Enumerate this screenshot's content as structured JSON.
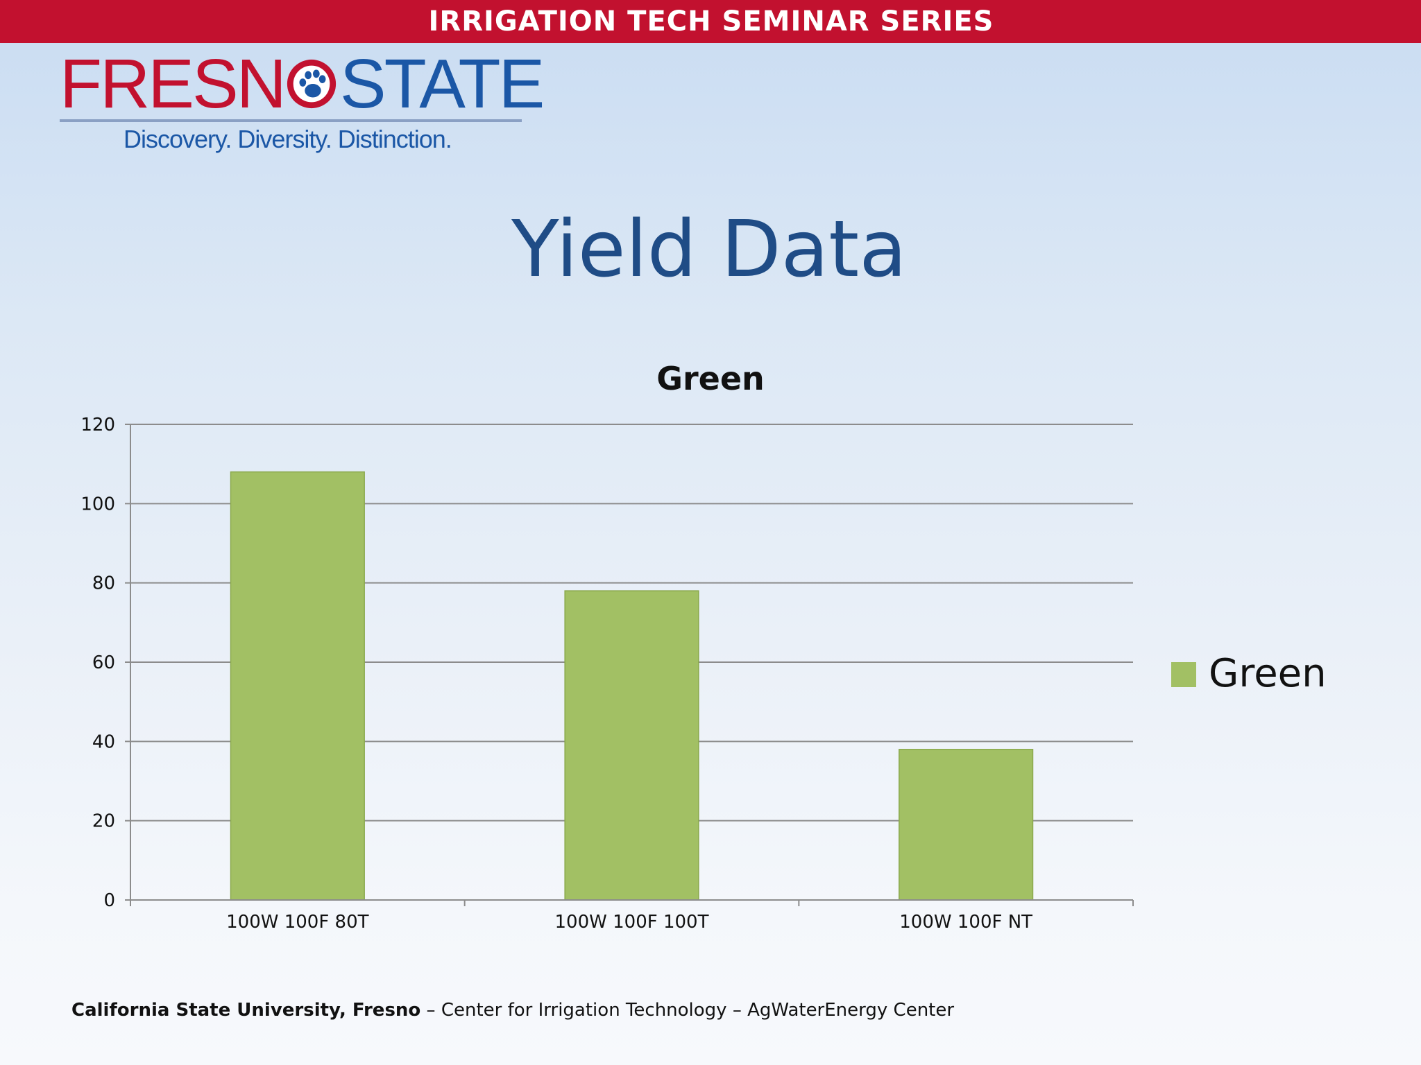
{
  "banner": {
    "title": "IRRIGATION TECH SEMINAR SERIES"
  },
  "logo": {
    "word_left": "FRESN",
    "word_right": "STATE",
    "tagline": "Discovery. Diversity. Distinction."
  },
  "slide": {
    "title": "Yield Data"
  },
  "chart_data": {
    "type": "bar",
    "title": "Green",
    "categories": [
      "100W 100F 80T",
      "100W 100F 100T",
      "100W 100F NT"
    ],
    "series": [
      {
        "name": "Green",
        "values": [
          108,
          78,
          38
        ]
      }
    ],
    "ylim": [
      0,
      120
    ],
    "yticks": [
      0,
      20,
      40,
      60,
      80,
      100,
      120
    ],
    "xlabel": "",
    "ylabel": "",
    "grid": true,
    "legend_position": "right",
    "colors": {
      "bar": "#a2c064",
      "bar_edge": "#8aa94d",
      "gridline": "#8c8c8c"
    }
  },
  "footer": {
    "org": "California State University, Fresno",
    "rest": " – Center for Irrigation Technology – AgWaterEnergy Center"
  }
}
